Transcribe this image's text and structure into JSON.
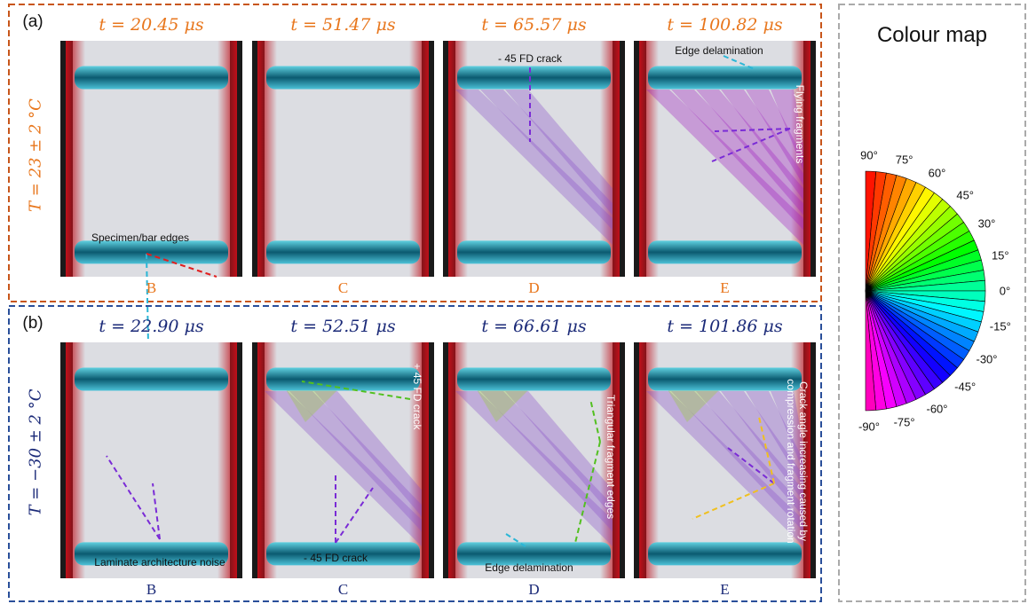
{
  "panels": [
    {
      "label": "(a)",
      "temperature": "T = 23 ± 2 °C",
      "frames": [
        {
          "time": "t = 20.45 μs",
          "label": "B",
          "annotations": [
            "Specimen/bar edges"
          ]
        },
        {
          "time": "t = 51.47 μs",
          "label": "C",
          "annotations": []
        },
        {
          "time": "t = 65.57 μs",
          "label": "D",
          "annotations": [
            "- 45 FD crack"
          ]
        },
        {
          "time": "t = 100.82 μs",
          "label": "E",
          "annotations": [
            "Edge delamination",
            "Flying fragments"
          ]
        }
      ]
    },
    {
      "label": "(b)",
      "temperature": "T = −30 ± 2 °C",
      "frames": [
        {
          "time": "t = 22.90 μs",
          "label": "B",
          "annotations": [
            "Laminate architecture noise"
          ]
        },
        {
          "time": "t = 52.51 μs",
          "label": "C",
          "annotations": [
            "+ 45 FD crack",
            "- 45 FD crack"
          ]
        },
        {
          "time": "t = 66.61 μs",
          "label": "D",
          "annotations": [
            "Triangular fragment edges",
            "Edge delamination"
          ]
        },
        {
          "time": "t = 101.86 μs",
          "label": "E",
          "annotations": [
            "Crack angle increasing caused by compression and fragment rotation"
          ]
        }
      ]
    }
  ],
  "colour_map": {
    "title": "Colour map",
    "ticks": [
      "90°",
      "75°",
      "60°",
      "45°",
      "30°",
      "15°",
      "0°",
      "-15°",
      "-30°",
      "-45°",
      "-60°",
      "-75°",
      "-90°"
    ]
  }
}
